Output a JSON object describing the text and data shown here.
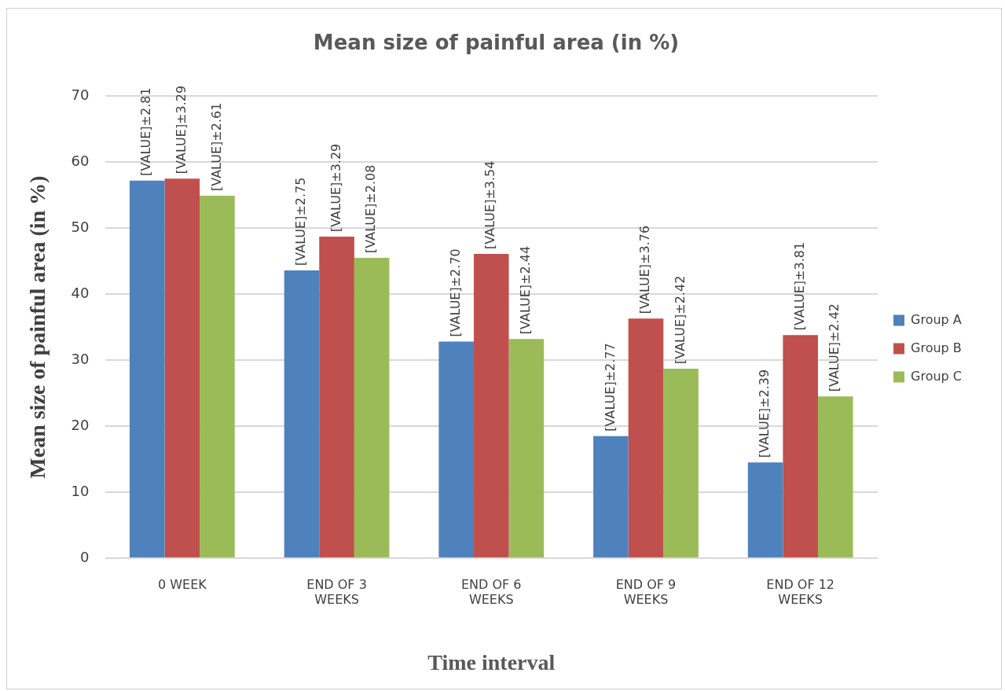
{
  "chart_data": {
    "type": "bar",
    "title": "Mean size of painful area (in %)",
    "xlabel": "Time interval",
    "ylabel": "Mean size of painful area (in %)",
    "categories": [
      "0 WEEK",
      "END OF 3 WEEKS",
      "END OF 6 WEEKS",
      "END OF 9 WEEKS",
      "END OF 12 WEEKS"
    ],
    "series": [
      {
        "name": "Group A",
        "color": "#4f81bd",
        "values": [
          57.2,
          43.6,
          32.8,
          18.5,
          14.5
        ]
      },
      {
        "name": "Group B",
        "color": "#c0504d",
        "values": [
          57.5,
          48.7,
          46.1,
          36.3,
          33.8
        ]
      },
      {
        "name": "Group C",
        "color": "#9bbb59",
        "values": [
          54.9,
          45.5,
          33.2,
          28.7,
          24.5
        ]
      }
    ],
    "annotations": [
      "[VALUE]±2.81",
      "[VALUE]±3.29",
      "[VALUE]±2.61",
      "[VALUE]±2.75",
      "[VALUE]±3.29",
      "[VALUE]±2.08",
      "[VALUE]±2.70",
      "[VALUE]±3.54",
      "[VALUE]±2.44",
      "[VALUE]±2.77",
      "[VALUE]±3.76",
      "[VALUE]±2.42",
      "[VALUE]±2.39",
      "[VALUE]±3.81",
      "[VALUE]±2.42"
    ],
    "ylim": [
      0,
      70
    ],
    "yticks": [
      0,
      10,
      20,
      30,
      40,
      50,
      60,
      70
    ],
    "grid": "y",
    "legend": "right"
  }
}
